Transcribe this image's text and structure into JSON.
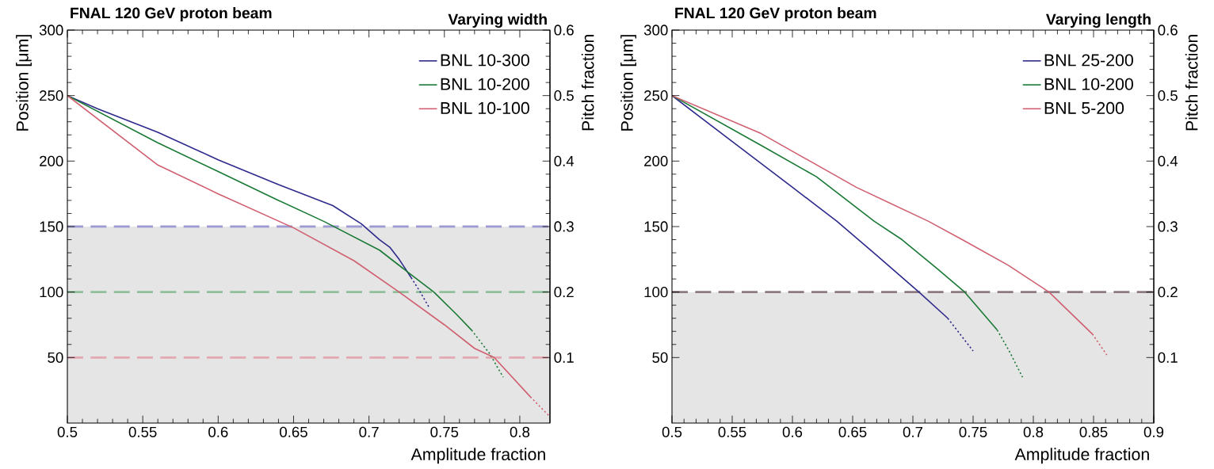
{
  "chart_data": [
    {
      "type": "line",
      "title": "FNAL 120 GeV proton beam",
      "subtitle": "Varying width",
      "xlabel": "Amplitude fraction",
      "ylabel": "Position [μm]",
      "y2label": "Pitch fraction",
      "xlim": [
        0.5,
        0.82
      ],
      "xticks": [
        0.5,
        0.55,
        0.6,
        0.65,
        0.7,
        0.75,
        0.8
      ],
      "ylim": [
        0,
        300
      ],
      "yticks": [
        50,
        100,
        150,
        200,
        250,
        300
      ],
      "y2lim": [
        0,
        0.6
      ],
      "y2ticks": [
        0.1,
        0.2,
        0.3,
        0.4,
        0.5,
        0.6
      ],
      "legend": "top right",
      "bands": [
        {
          "axis": "y",
          "from": 0,
          "to": 150,
          "color": "#e5e5e5"
        }
      ],
      "ref_lines": [
        {
          "axis": "y",
          "value": 150,
          "color": "#9e9bd2",
          "line_style": "dashed"
        },
        {
          "axis": "y",
          "value": 100,
          "color": "#8fc09b",
          "line_style": "dashed"
        },
        {
          "axis": "y",
          "value": 50,
          "color": "#e3a9b2",
          "line_style": "dashed"
        }
      ],
      "series": [
        {
          "name": "BNL 10-300",
          "color": "#2e2a8c",
          "line_style": "solid",
          "x": [
            0.5,
            0.52,
            0.56,
            0.6,
            0.64,
            0.676,
            0.695,
            0.707,
            0.714,
            0.72,
            0.728
          ],
          "values": [
            250,
            240,
            222,
            201,
            182,
            166,
            152,
            140,
            134,
            125,
            111
          ]
        },
        {
          "color": "#2e2a8c",
          "line_style": "dotted",
          "x": [
            0.728,
            0.734,
            0.74
          ],
          "values": [
            111,
            100,
            88
          ]
        },
        {
          "name": "BNL 10-200",
          "color": "#1a7a35",
          "line_style": "solid",
          "x": [
            0.5,
            0.56,
            0.6,
            0.64,
            0.67,
            0.707,
            0.726,
            0.743,
            0.758,
            0.768
          ],
          "values": [
            250,
            214,
            192,
            170,
            154,
            132,
            115,
            100,
            83,
            71
          ]
        },
        {
          "color": "#1a7a35",
          "line_style": "dotted",
          "x": [
            0.768,
            0.78,
            0.789
          ],
          "values": [
            71,
            53,
            35
          ]
        },
        {
          "name": "BNL 10-100",
          "color": "#d06070",
          "line_style": "solid",
          "x": [
            0.5,
            0.56,
            0.6,
            0.65,
            0.69,
            0.72,
            0.75,
            0.77,
            0.783,
            0.807
          ],
          "values": [
            250,
            197,
            175,
            149,
            124,
            100,
            75,
            57,
            50,
            20
          ]
        },
        {
          "color": "#d06070",
          "line_style": "dotted",
          "x": [
            0.807,
            0.819
          ],
          "values": [
            20,
            6
          ]
        }
      ]
    },
    {
      "type": "line",
      "title": "FNAL 120 GeV proton beam",
      "subtitle": "Varying length",
      "xlabel": "Amplitude fraction",
      "ylabel": "Position [μm]",
      "y2label": "Pitch fraction",
      "xlim": [
        0.5,
        0.9
      ],
      "xticks": [
        0.5,
        0.55,
        0.6,
        0.65,
        0.7,
        0.75,
        0.8,
        0.85,
        0.9
      ],
      "ylim": [
        0,
        300
      ],
      "yticks": [
        50,
        100,
        150,
        200,
        250,
        300
      ],
      "y2lim": [
        0,
        0.6
      ],
      "y2ticks": [
        0.1,
        0.2,
        0.3,
        0.4,
        0.5,
        0.6
      ],
      "legend": "top right",
      "bands": [
        {
          "axis": "y",
          "from": 0,
          "to": 100,
          "color": "#e5e5e5"
        }
      ],
      "ref_lines": [
        {
          "axis": "y",
          "value": 100,
          "color": "#8c7a80",
          "line_style": "dashed"
        }
      ],
      "series": [
        {
          "name": "BNL 25-200",
          "color": "#2e2a8c",
          "line_style": "solid",
          "x": [
            0.5,
            0.55,
            0.6,
            0.637,
            0.67,
            0.705,
            0.729
          ],
          "values": [
            250,
            215,
            180,
            154,
            128,
            100,
            80
          ]
        },
        {
          "color": "#2e2a8c",
          "line_style": "dotted",
          "x": [
            0.729,
            0.75
          ],
          "values": [
            80,
            55
          ]
        },
        {
          "name": "BNL 10-200",
          "color": "#1a7a35",
          "line_style": "solid",
          "x": [
            0.5,
            0.574,
            0.62,
            0.668,
            0.691,
            0.72,
            0.743,
            0.77
          ],
          "values": [
            250,
            212,
            188,
            154,
            140,
            118,
            100,
            71
          ]
        },
        {
          "color": "#1a7a35",
          "line_style": "dotted",
          "x": [
            0.77,
            0.78,
            0.791
          ],
          "values": [
            71,
            55,
            35
          ]
        },
        {
          "name": "BNL 5-200",
          "color": "#d06070",
          "line_style": "solid",
          "x": [
            0.5,
            0.574,
            0.653,
            0.713,
            0.741,
            0.78,
            0.813,
            0.849
          ],
          "values": [
            250,
            221,
            180,
            154,
            140,
            120,
            100,
            68
          ]
        },
        {
          "color": "#d06070",
          "line_style": "dotted",
          "x": [
            0.849,
            0.861
          ],
          "values": [
            68,
            52
          ]
        }
      ]
    }
  ]
}
